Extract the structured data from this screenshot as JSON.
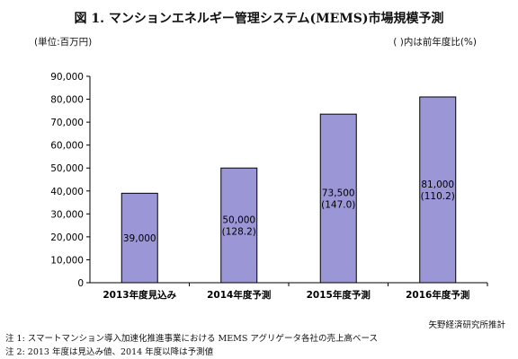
{
  "header": {
    "title": "図 1.  マンションエネルギー管理システム(MEMS)市場規模予測",
    "unit_left": "(単位:百万円)",
    "unit_right": "(  )内は前年度比(%)"
  },
  "chart_data": {
    "type": "bar",
    "title": "図 1.  マンションエネルギー管理システム(MEMS)市場規模予測",
    "ylabel": "(単位:百万円)",
    "xlabel": "",
    "categories": [
      "2013年度見込み",
      "2014年度予測",
      "2015年度予測",
      "2016年度予測"
    ],
    "values": [
      39000,
      50000,
      73500,
      81000
    ],
    "data_labels": [
      [
        "39,000"
      ],
      [
        "50,000",
        "(128.2)"
      ],
      [
        "73,500",
        "(147.0)"
      ],
      [
        "81,000",
        "(110.2)"
      ]
    ],
    "yoy_percent": [
      null,
      128.2,
      147.0,
      110.2
    ],
    "ylim": [
      0,
      90000
    ],
    "yticks": [
      0,
      10000,
      20000,
      30000,
      40000,
      50000,
      60000,
      70000,
      80000,
      90000
    ],
    "ytick_labels": [
      "0",
      "10,000",
      "20,000",
      "30,000",
      "40,000",
      "50,000",
      "60,000",
      "70,000",
      "80,000",
      "90,000"
    ],
    "grid": false,
    "bar_color": "#9b96d6",
    "bar_edge_color": "#000000"
  },
  "footer": {
    "source": "矢野経済研究所推計",
    "note1": "注 1: スマートマンション導入加速化推進事業における MEMS アグリゲータ各社の売上高ベース",
    "note2": "注 2: 2013 年度は見込み値、2014 年度以降は予測値"
  }
}
